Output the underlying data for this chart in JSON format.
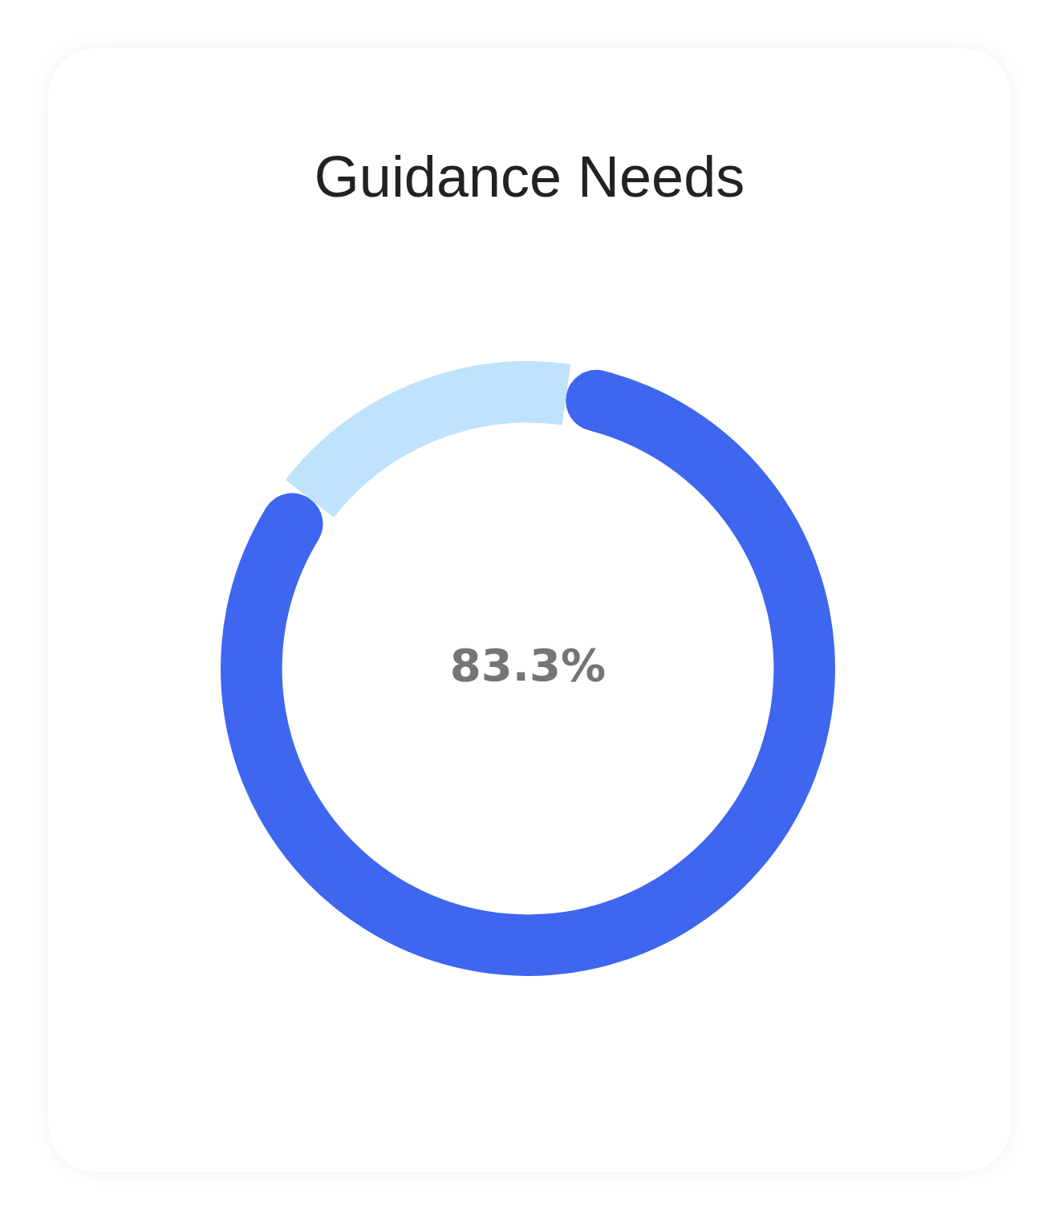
{
  "chart_data": {
    "type": "donut",
    "title": "Guidance Needs",
    "categories": [
      null,
      null
    ],
    "values": [
      83.3,
      16.7
    ],
    "colors": [
      "#3e66ef",
      "#bfe3fd"
    ],
    "annotations": [
      "83.3%"
    ],
    "legend": false
  }
}
